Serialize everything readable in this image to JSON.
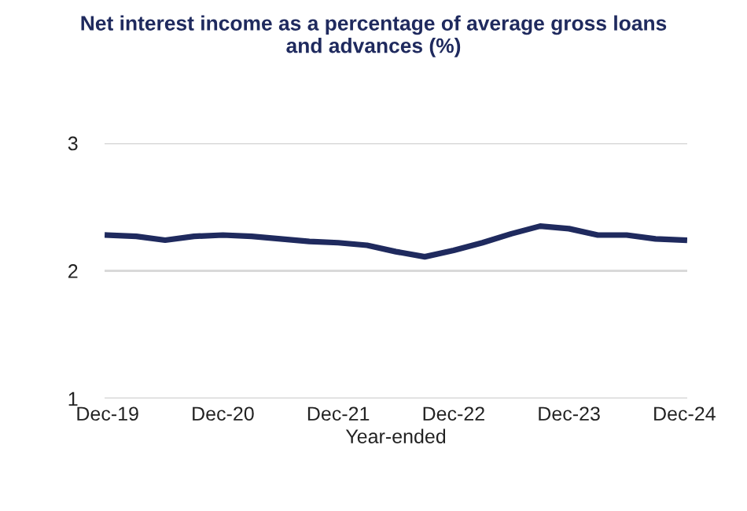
{
  "chart_data": {
    "type": "line",
    "title": "Net interest income as a percentage of average gross loans\nand advances (%)",
    "xlabel": "Year-ended",
    "categories": [
      "Dec-19",
      null,
      null,
      null,
      "Dec-20",
      null,
      null,
      null,
      "Dec-21",
      null,
      null,
      null,
      "Dec-22",
      null,
      null,
      null,
      "Dec-23",
      null,
      null,
      null,
      "Dec-24"
    ],
    "series": [
      {
        "color": "#1f2a5e",
        "values": [
          2.28,
          2.27,
          2.24,
          2.27,
          2.28,
          2.27,
          2.25,
          2.23,
          2.22,
          2.2,
          2.15,
          2.11,
          2.16,
          2.22,
          2.29,
          2.35,
          2.33,
          2.28,
          2.28,
          2.25,
          2.24
        ]
      }
    ],
    "ylim": [
      1,
      3
    ],
    "yticks": [
      1,
      2,
      3
    ],
    "grid": "y",
    "legend": false,
    "marker": "none",
    "line_style": "solid"
  }
}
